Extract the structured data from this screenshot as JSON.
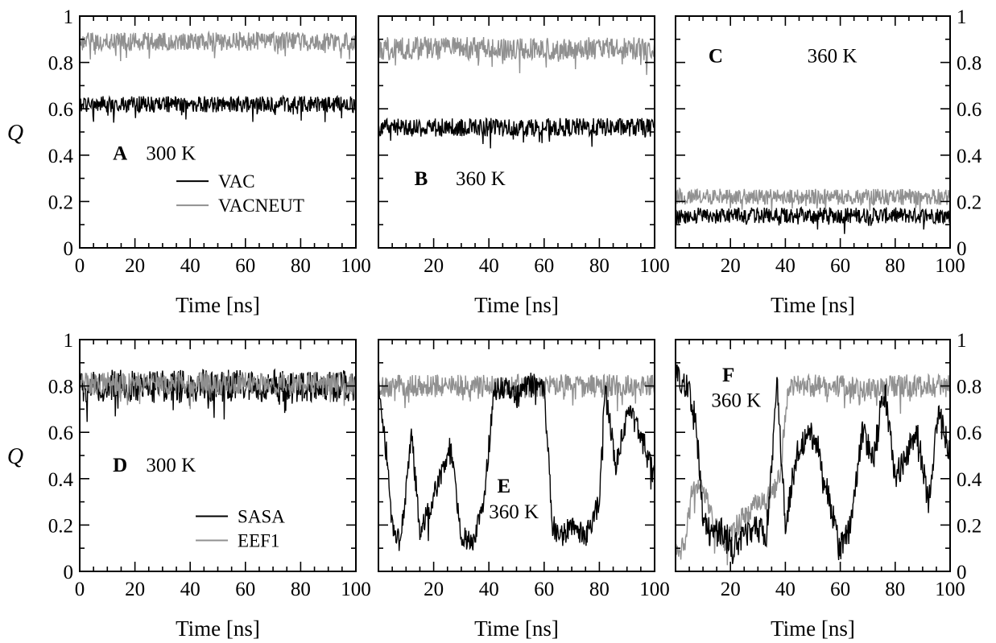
{
  "chart_data": [
    {
      "type": "line",
      "panel": "A",
      "temperature": "300 K",
      "xlabel": "Time [ns]",
      "ylabel": "Q",
      "xlim": [
        0,
        100
      ],
      "ylim": [
        0,
        1
      ],
      "x_ticks": [
        "0",
        "20",
        "40",
        "60",
        "80",
        "100"
      ],
      "y_ticks": [
        "0",
        "0.2",
        "0.4",
        "0.6",
        "0.8",
        "1"
      ],
      "series": [
        {
          "name": "VAC",
          "color": "#000000",
          "mean": 0.62,
          "spread": 0.035
        },
        {
          "name": "VACNEUT",
          "color": "#909090",
          "mean": 0.89,
          "spread": 0.04
        }
      ]
    },
    {
      "type": "line",
      "panel": "B",
      "temperature": "360 K",
      "xlabel": "Time [ns]",
      "ylabel": "",
      "xlim": [
        0,
        100
      ],
      "ylim": [
        0,
        1
      ],
      "x_ticks": [
        "",
        "20",
        "40",
        "60",
        "80",
        "100"
      ],
      "series": [
        {
          "color": "#000000",
          "mean": 0.52,
          "spread": 0.04
        },
        {
          "color": "#909090",
          "mean": 0.86,
          "spread": 0.05
        }
      ]
    },
    {
      "type": "line",
      "panel": "C",
      "temperature": "360 K",
      "xlabel": "Time [ns]",
      "ylabel": "",
      "xlim": [
        0,
        100
      ],
      "ylim": [
        0,
        1
      ],
      "x_ticks": [
        "",
        "20",
        "40",
        "60",
        "80",
        "100"
      ],
      "y_ticks_right": [
        "0",
        "0.2",
        "0.4",
        "0.6",
        "0.8",
        "1"
      ],
      "series": [
        {
          "color": "#000000",
          "mean": 0.14,
          "spread": 0.035
        },
        {
          "color": "#909090",
          "mean": 0.22,
          "spread": 0.035
        }
      ]
    },
    {
      "type": "line",
      "panel": "D",
      "temperature": "300 K",
      "xlabel": "Time [ns]",
      "ylabel": "Q",
      "xlim": [
        0,
        100
      ],
      "ylim": [
        0,
        1
      ],
      "x_ticks": [
        "0",
        "20",
        "40",
        "60",
        "80",
        "100"
      ],
      "y_ticks": [
        "0",
        "0.2",
        "0.4",
        "0.6",
        "0.8",
        "1"
      ],
      "series": [
        {
          "name": "SASA",
          "color": "#000000",
          "mean": 0.8,
          "spread": 0.07
        },
        {
          "name": "EEF1",
          "color": "#909090",
          "mean": 0.81,
          "spread": 0.05
        }
      ]
    },
    {
      "type": "line",
      "panel": "E",
      "temperature": "360 K",
      "xlabel": "Time [ns]",
      "ylabel": "",
      "xlim": [
        0,
        100
      ],
      "ylim": [
        0,
        1
      ],
      "x_ticks": [
        "",
        "20",
        "40",
        "60",
        "80",
        "100"
      ],
      "series": [
        {
          "color": "#909090",
          "mean": 0.8,
          "spread": 0.05
        },
        {
          "color": "#000000",
          "spread": 0.05,
          "profile_x": [
            0,
            3,
            5,
            8,
            12,
            15,
            18,
            22,
            26,
            30,
            34,
            38,
            42,
            46,
            50,
            55,
            60,
            63,
            66,
            70,
            75,
            80,
            82,
            86,
            90,
            95,
            100
          ],
          "profile_y": [
            0.8,
            0.5,
            0.2,
            0.12,
            0.6,
            0.18,
            0.25,
            0.4,
            0.55,
            0.15,
            0.12,
            0.3,
            0.78,
            0.8,
            0.75,
            0.82,
            0.8,
            0.2,
            0.15,
            0.2,
            0.15,
            0.3,
            0.8,
            0.45,
            0.7,
            0.6,
            0.4
          ]
        }
      ]
    },
    {
      "type": "line",
      "panel": "F",
      "temperature": "360 K",
      "xlabel": "Time [ns]",
      "ylabel": "",
      "xlim": [
        0,
        100
      ],
      "ylim": [
        0,
        1
      ],
      "x_ticks": [
        "",
        "20",
        "40",
        "60",
        "80",
        "100"
      ],
      "y_ticks_right": [
        "0",
        "0.2",
        "0.4",
        "0.6",
        "0.8",
        "1"
      ],
      "series": [
        {
          "color": "#909090",
          "spread": 0.05,
          "profile_x": [
            0,
            3,
            6,
            10,
            14,
            18,
            22,
            26,
            30,
            34,
            38,
            41,
            45,
            50,
            60,
            70,
            80,
            90,
            100
          ],
          "profile_y": [
            0.1,
            0.1,
            0.35,
            0.35,
            0.2,
            0.12,
            0.2,
            0.25,
            0.3,
            0.32,
            0.4,
            0.8,
            0.8,
            0.8,
            0.8,
            0.78,
            0.8,
            0.8,
            0.8
          ]
        },
        {
          "color": "#000000",
          "spread": 0.06,
          "profile_x": [
            0,
            4,
            7,
            10,
            13,
            17,
            21,
            25,
            29,
            33,
            37,
            40,
            44,
            48,
            52,
            56,
            60,
            64,
            68,
            72,
            76,
            80,
            84,
            88,
            92,
            96,
            100
          ],
          "profile_y": [
            0.85,
            0.8,
            0.7,
            0.25,
            0.15,
            0.18,
            0.1,
            0.15,
            0.2,
            0.15,
            0.8,
            0.2,
            0.5,
            0.6,
            0.55,
            0.3,
            0.1,
            0.2,
            0.6,
            0.5,
            0.8,
            0.4,
            0.5,
            0.6,
            0.3,
            0.7,
            0.5
          ]
        }
      ]
    }
  ]
}
